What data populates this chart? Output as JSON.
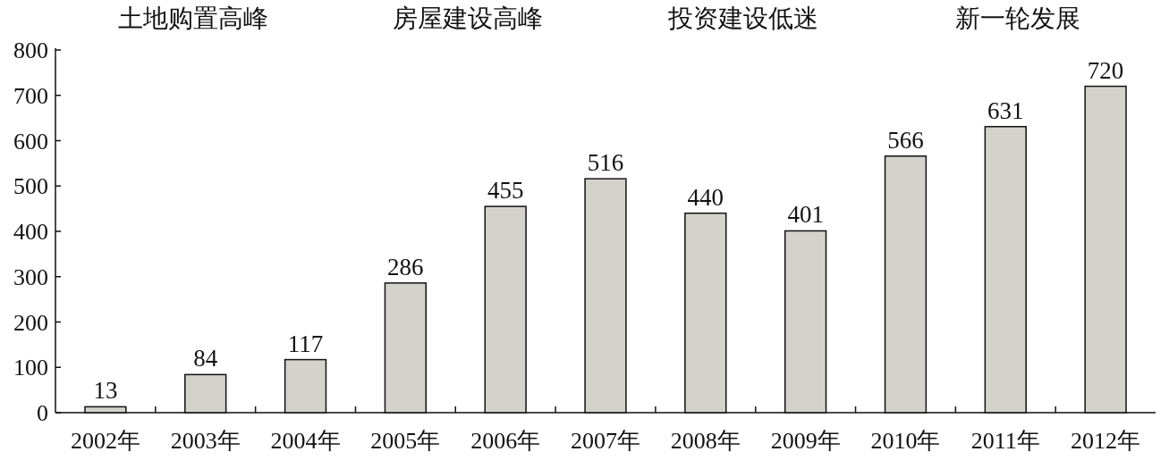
{
  "chart_data": {
    "type": "bar",
    "categories": [
      "2002年",
      "2003年",
      "2004年",
      "2005年",
      "2006年",
      "2007年",
      "2008年",
      "2009年",
      "2010年",
      "2011年",
      "2012年"
    ],
    "values": [
      13,
      84,
      117,
      286,
      455,
      516,
      440,
      401,
      566,
      631,
      720
    ],
    "color": "#d3d3cc",
    "ylim": [
      0,
      800
    ],
    "yticks": [
      0,
      100,
      200,
      300,
      400,
      500,
      600,
      700,
      800
    ],
    "data_labels": true,
    "annotations": [
      "土地购置高峰",
      "房屋建设高峰",
      "投资建设低迷",
      "新一轮发展"
    ]
  }
}
